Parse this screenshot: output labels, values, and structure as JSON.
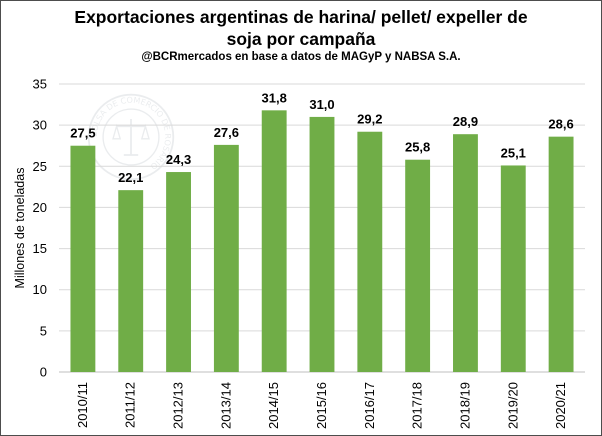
{
  "chart_data": {
    "type": "bar",
    "title_line1": "Exportaciones argentinas de harina/ pellet/ expeller de",
    "title_line2": "soja por campaña",
    "subtitle": "@BCRmercados  en base a datos de MAGyP y NABSA S.A.",
    "ylabel": "Millones de toneladas",
    "xlabel": "",
    "ylim": [
      0,
      35
    ],
    "yticks": [
      0,
      5,
      10,
      15,
      20,
      25,
      30,
      35
    ],
    "categories": [
      "2010/11",
      "2011/12",
      "2012/13",
      "2013/14",
      "2014/15",
      "2015/16",
      "2016/17",
      "2017/18",
      "2018/19",
      "2019/20",
      "2020/21"
    ],
    "values": [
      27.5,
      22.1,
      24.3,
      27.6,
      31.8,
      31.0,
      29.2,
      25.8,
      28.9,
      25.1,
      28.6
    ],
    "value_labels": [
      "27,5",
      "22,1",
      "24,3",
      "27,6",
      "31,8",
      "31,0",
      "29,2",
      "25,8",
      "28,9",
      "25,1",
      "28,6"
    ],
    "bar_color": "#70ad47",
    "grid": true,
    "legend": "none"
  },
  "watermark_text": "BOLSA DE COMERCIO DE ROSARIO"
}
